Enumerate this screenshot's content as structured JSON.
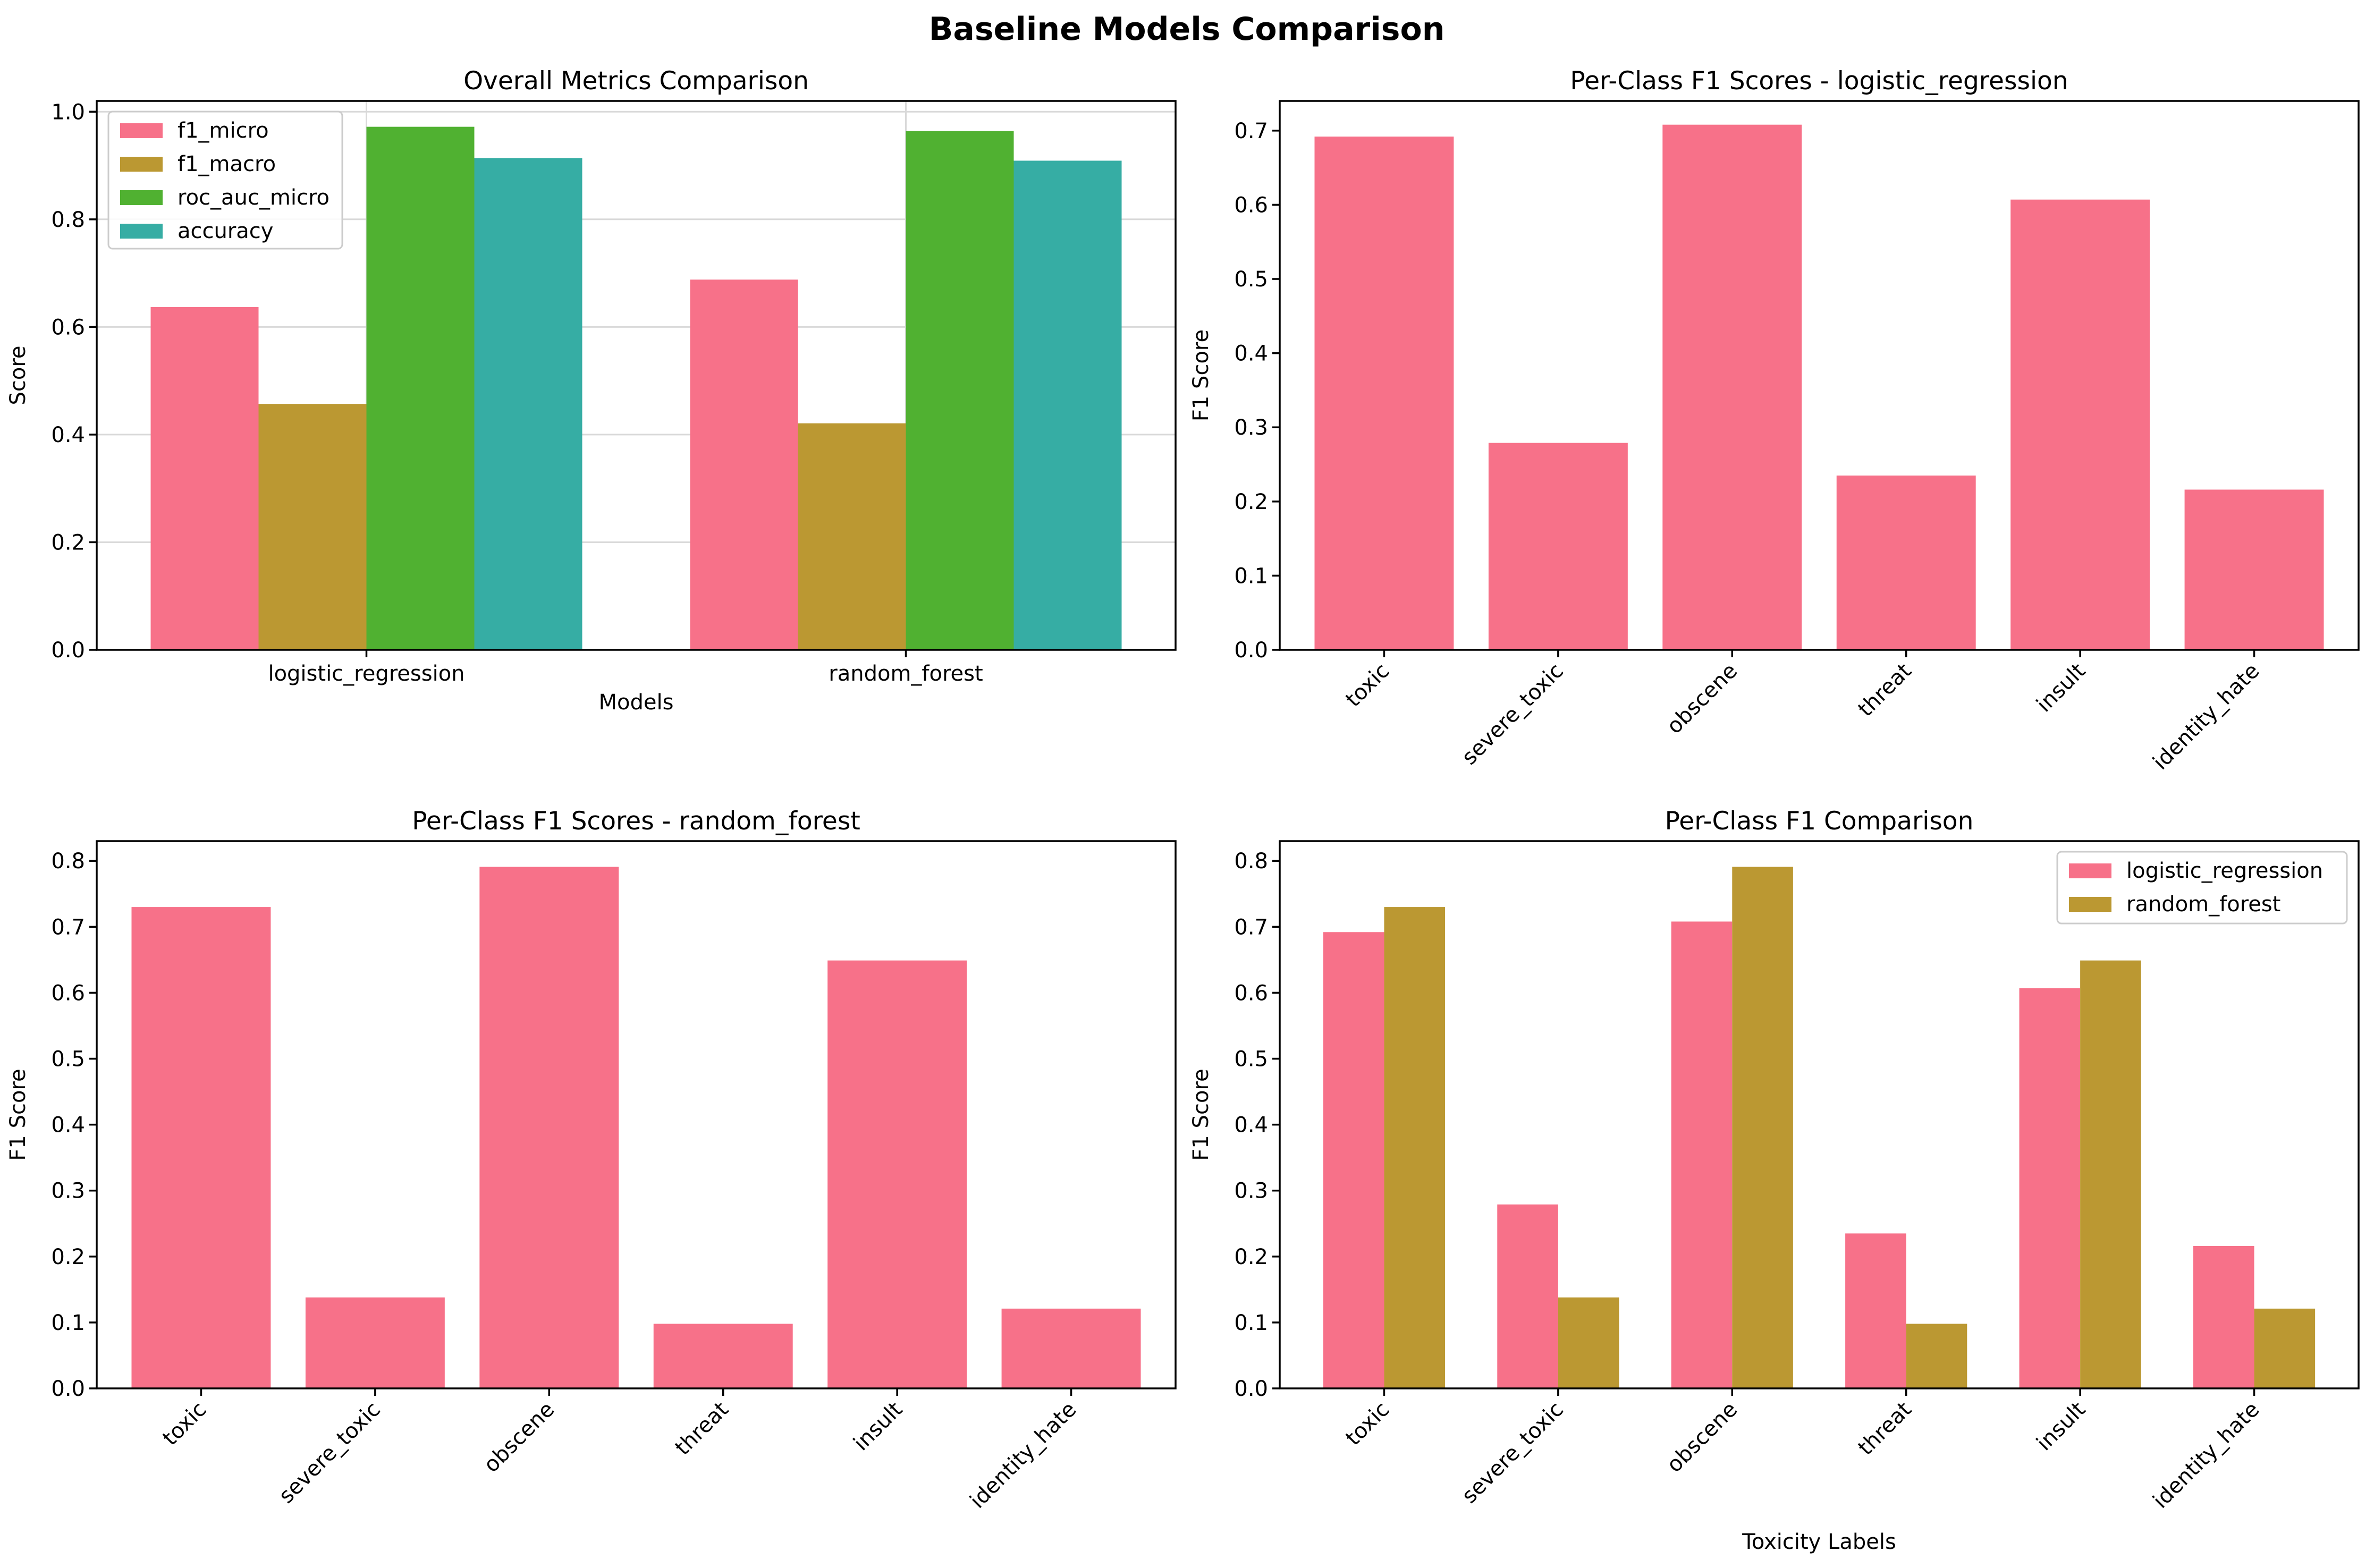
{
  "figure": {
    "title": "Baseline Models Comparison"
  },
  "chart_data": [
    {
      "type": "bar",
      "title": "Overall Metrics Comparison",
      "xlabel": "Models",
      "ylabel": "Score",
      "categories": [
        "logistic_regression",
        "random_forest"
      ],
      "series": [
        {
          "name": "f1_micro",
          "values": [
            0.637,
            0.688
          ],
          "color": "#f77189"
        },
        {
          "name": "f1_macro",
          "values": [
            0.457,
            0.421
          ],
          "color": "#bb9832"
        },
        {
          "name": "roc_auc_micro",
          "values": [
            0.972,
            0.964
          ],
          "color": "#50b131"
        },
        {
          "name": "accuracy",
          "values": [
            0.914,
            0.909
          ],
          "color": "#36ada4"
        }
      ],
      "ylim": [
        0,
        1.02
      ],
      "yticks": [
        "0.0",
        "0.2",
        "0.4",
        "0.6",
        "0.8",
        "1.0"
      ],
      "grid": true,
      "legend": "upper left"
    },
    {
      "type": "bar",
      "title": "Per-Class F1 Scores - logistic_regression",
      "xlabel": "",
      "ylabel": "F1 Score",
      "categories": [
        "toxic",
        "severe_toxic",
        "obscene",
        "threat",
        "insult",
        "identity_hate"
      ],
      "series": [
        {
          "values": [
            0.692,
            0.279,
            0.708,
            0.235,
            0.607,
            0.216
          ],
          "color": "#f77189"
        }
      ],
      "ylim": [
        0,
        0.74
      ],
      "yticks": [
        "0.0",
        "0.1",
        "0.2",
        "0.3",
        "0.4",
        "0.5",
        "0.6",
        "0.7"
      ],
      "grid": false,
      "legend": "none"
    },
    {
      "type": "bar",
      "title": "Per-Class F1 Scores - random_forest",
      "xlabel": "",
      "ylabel": "F1 Score",
      "categories": [
        "toxic",
        "severe_toxic",
        "obscene",
        "threat",
        "insult",
        "identity_hate"
      ],
      "series": [
        {
          "values": [
            0.73,
            0.138,
            0.791,
            0.098,
            0.649,
            0.121
          ],
          "color": "#f77189"
        }
      ],
      "ylim": [
        0,
        0.83
      ],
      "yticks": [
        "0.0",
        "0.1",
        "0.2",
        "0.3",
        "0.4",
        "0.5",
        "0.6",
        "0.7",
        "0.8"
      ],
      "grid": false,
      "legend": "none"
    },
    {
      "type": "bar",
      "title": "Per-Class F1 Comparison",
      "xlabel": "Toxicity Labels",
      "ylabel": "F1 Score",
      "categories": [
        "toxic",
        "severe_toxic",
        "obscene",
        "threat",
        "insult",
        "identity_hate"
      ],
      "series": [
        {
          "name": "logistic_regression",
          "values": [
            0.692,
            0.279,
            0.708,
            0.235,
            0.607,
            0.216
          ],
          "color": "#f77189"
        },
        {
          "name": "random_forest",
          "values": [
            0.73,
            0.138,
            0.791,
            0.098,
            0.649,
            0.121
          ],
          "color": "#bb9832"
        }
      ],
      "ylim": [
        0,
        0.83
      ],
      "yticks": [
        "0.0",
        "0.1",
        "0.2",
        "0.3",
        "0.4",
        "0.5",
        "0.6",
        "0.7",
        "0.8"
      ],
      "grid": false,
      "legend": "upper right"
    }
  ]
}
